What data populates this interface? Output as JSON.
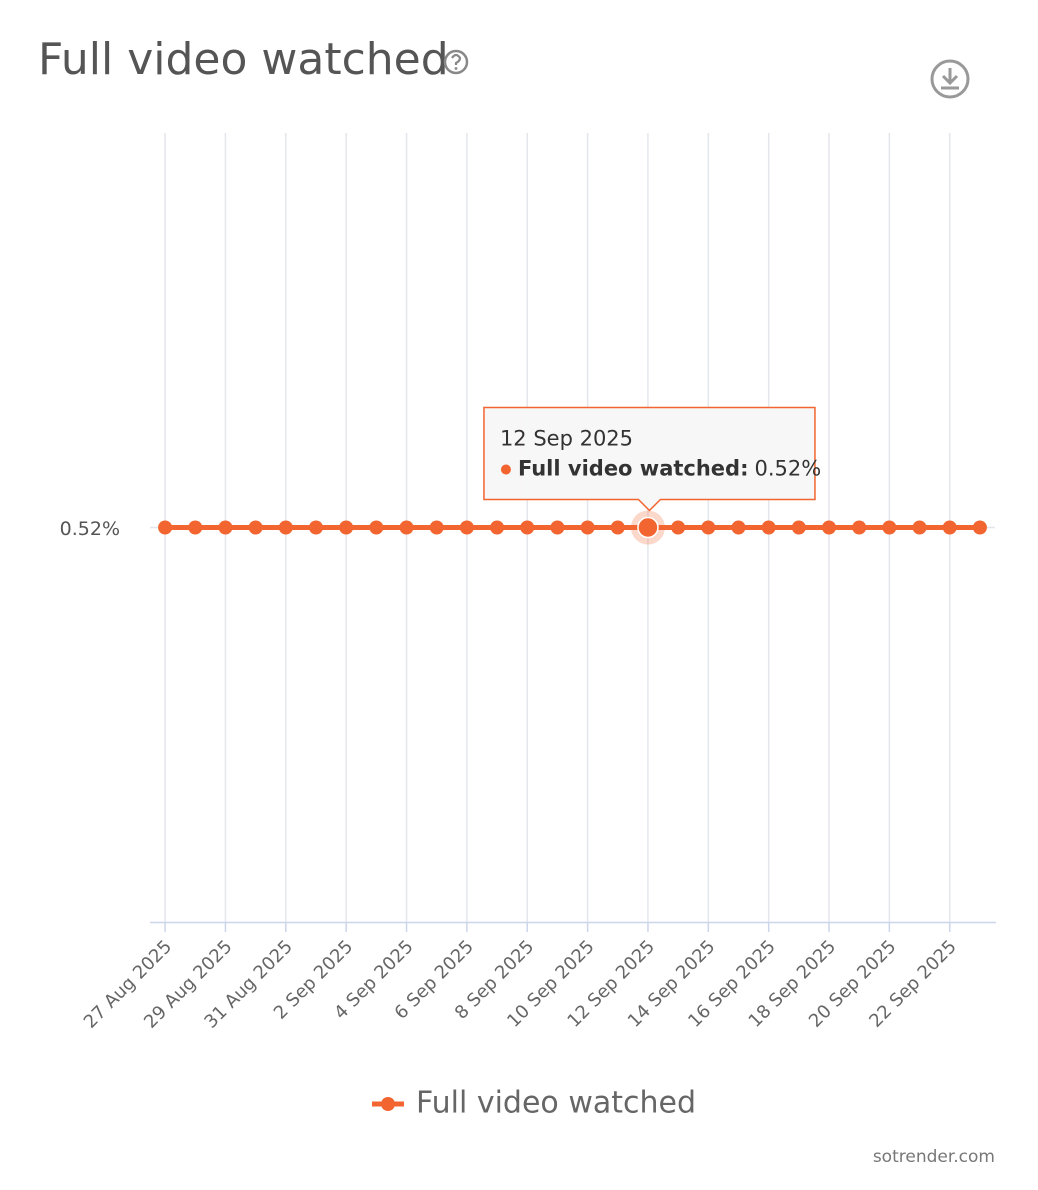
{
  "chart_data": {
    "type": "line",
    "title": "Full video watched",
    "categories": [
      "27 Aug 2025",
      null,
      "29 Aug 2025",
      null,
      "31 Aug 2025",
      null,
      "2 Sep 2025",
      null,
      "4 Sep 2025",
      null,
      "6 Sep 2025",
      null,
      "8 Sep 2025",
      null,
      "10 Sep 2025",
      null,
      "12 Sep 2025",
      null,
      "14 Sep 2025",
      null,
      "16 Sep 2025",
      null,
      "18 Sep 2025",
      null,
      "20 Sep 2025",
      null,
      "22 Sep 2025",
      null
    ],
    "series": [
      {
        "name": "Full video watched",
        "color": "#f26530",
        "values": [
          0.52,
          0.52,
          0.52,
          0.52,
          0.52,
          0.52,
          0.52,
          0.52,
          0.52,
          0.52,
          0.52,
          0.52,
          0.52,
          0.52,
          0.52,
          0.52,
          0.52,
          0.52,
          0.52,
          0.52,
          0.52,
          0.52,
          0.52,
          0.52,
          0.52,
          0.52,
          0.52,
          0.52
        ]
      }
    ],
    "ylim": [
      0,
      1.04
    ],
    "yticks": [
      {
        "value": 0.52,
        "label": "0.52%"
      }
    ],
    "grid": true,
    "tooltip": {
      "x": "12 Sep 2025",
      "series": "Full video watched:",
      "value": 0.52,
      "value_label": "0.52%"
    },
    "credit": "sotrender.com"
  }
}
